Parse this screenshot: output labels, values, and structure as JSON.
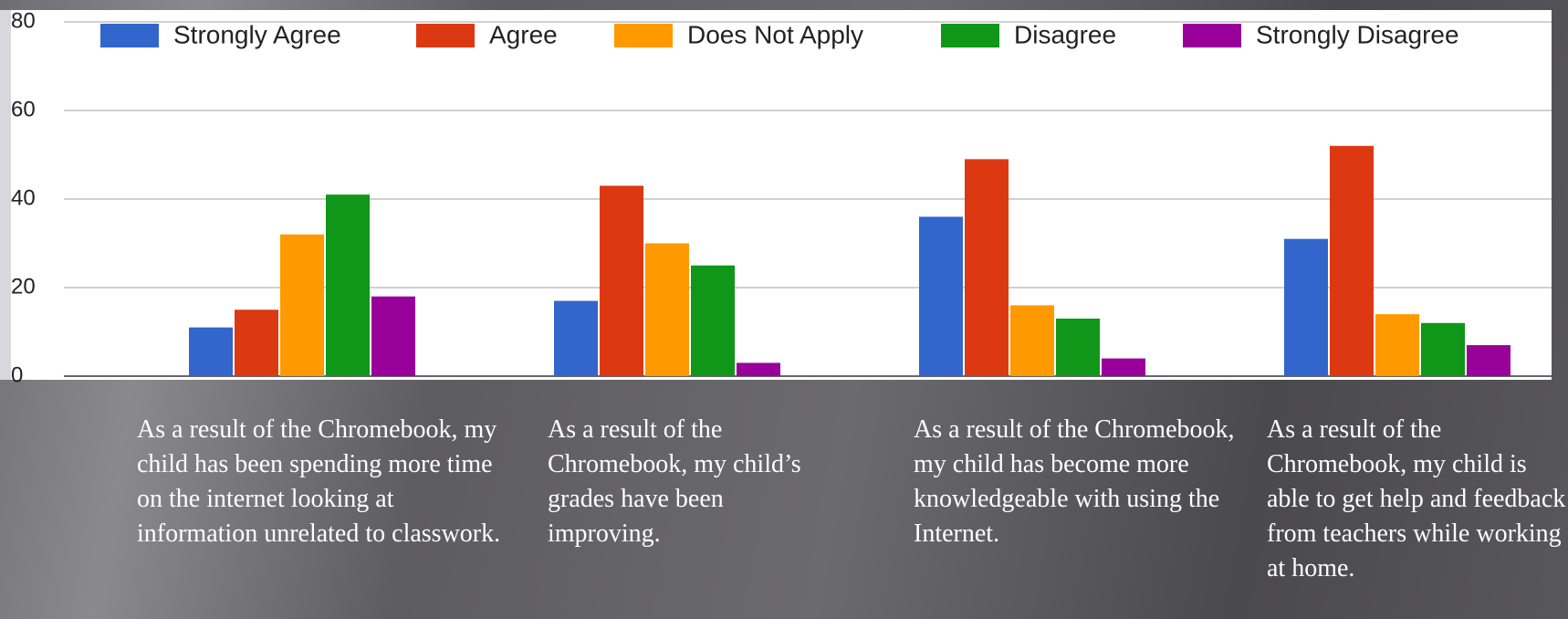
{
  "chart_data": {
    "type": "bar",
    "categories": [
      "As a result of the Chromebook, my child has been spending more time on the internet looking at information unrelated to classwork.",
      "As a result of the Chromebook, my child’s grades have been improving.",
      "As a result of the Chromebook, my child has become more knowledgeable with using the Internet.",
      "As a result of the Chromebook, my child is able to get help and feedback from teachers while working at home."
    ],
    "series": [
      {
        "name": "Strongly Agree",
        "color": "#3366cc",
        "values": [
          11,
          17,
          36,
          31
        ]
      },
      {
        "name": "Agree",
        "color": "#dc3912",
        "values": [
          15,
          43,
          49,
          52
        ]
      },
      {
        "name": "Does Not Apply",
        "color": "#ff9900",
        "values": [
          32,
          30,
          16,
          14
        ]
      },
      {
        "name": "Disagree",
        "color": "#109618",
        "values": [
          41,
          25,
          13,
          12
        ]
      },
      {
        "name": "Strongly Disagree",
        "color": "#990099",
        "values": [
          18,
          3,
          4,
          7
        ]
      }
    ],
    "ylim": [
      0,
      80
    ],
    "yticks": [
      0,
      20,
      40,
      60,
      80
    ],
    "grid": true,
    "legend": "top"
  }
}
